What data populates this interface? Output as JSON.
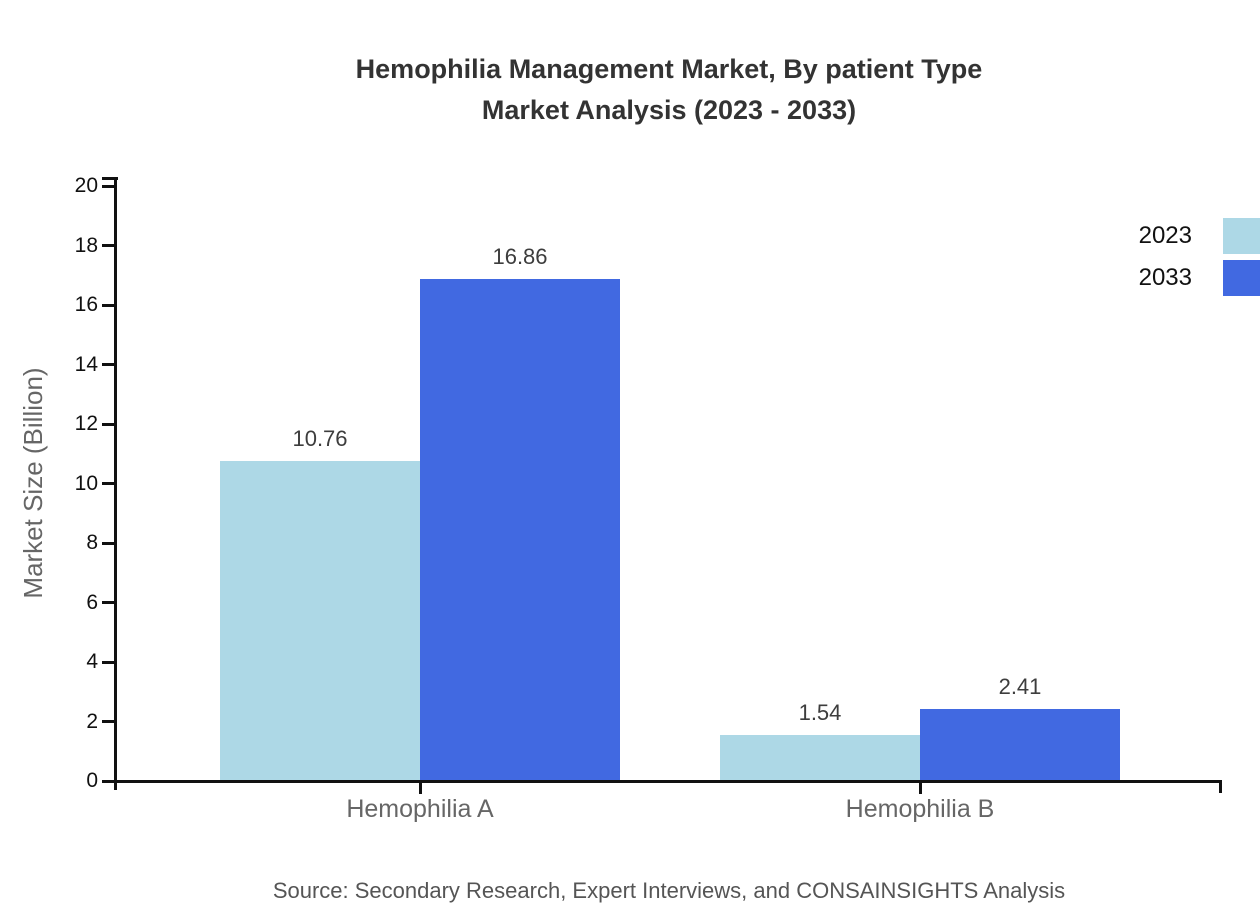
{
  "title": {
    "line1": "Hemophilia Management Market, By patient Type",
    "line2": "Market Analysis (2023 - 2033)"
  },
  "y_axis": {
    "label": "Market Size (Billion)"
  },
  "source": "Source: Secondary Research, Expert Interviews, and CONSAINSIGHTS Analysis",
  "chart_data": {
    "type": "bar",
    "title": "Hemophilia Management Market, By patient Type Market Analysis (2023 - 2033)",
    "categories": [
      "Hemophilia A",
      "Hemophilia B"
    ],
    "series": [
      {
        "name": "2023",
        "color": "#ADD8E6",
        "values": [
          10.76,
          1.54
        ]
      },
      {
        "name": "2033",
        "color": "#4169E1",
        "values": [
          16.86,
          2.41
        ]
      }
    ],
    "value_labels": {
      "2023": [
        "10.76",
        "1.54"
      ],
      "2033": [
        "16.86",
        "2.41"
      ]
    },
    "xlabel": "",
    "ylabel": "Market Size (Billion)",
    "ylim": [
      0,
      20
    ],
    "ytick_step": 2,
    "grid": false,
    "legend_position": "top-right",
    "axis_color": "#111111"
  }
}
